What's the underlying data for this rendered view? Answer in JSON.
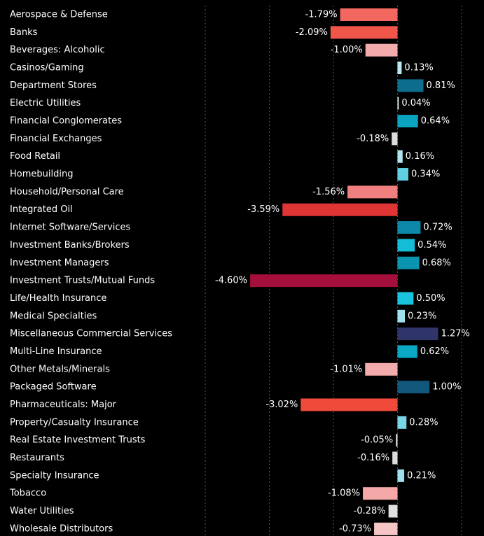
{
  "chart_data": {
    "type": "bar",
    "orientation": "horizontal",
    "categories": [
      "Aerospace & Defense",
      "Banks",
      "Beverages: Alcoholic",
      "Casinos/Gaming",
      "Department Stores",
      "Electric Utilities",
      "Financial Conglomerates",
      "Financial Exchanges",
      "Food Retail",
      "Homebuilding",
      "Household/Personal Care",
      "Integrated Oil",
      "Internet Software/Services",
      "Investment Banks/Brokers",
      "Investment Managers",
      "Investment Trusts/Mutual Funds",
      "Life/Health Insurance",
      "Medical Specialties",
      "Miscellaneous Commercial Services",
      "Multi-Line Insurance",
      "Other Metals/Minerals",
      "Packaged Software",
      "Pharmaceuticals: Major",
      "Property/Casualty Insurance",
      "Real Estate Investment Trusts",
      "Restaurants",
      "Specialty Insurance",
      "Tobacco",
      "Water Utilities",
      "Wholesale Distributors"
    ],
    "values": [
      -1.79,
      -2.09,
      -1.0,
      0.13,
      0.81,
      0.04,
      0.64,
      -0.18,
      0.16,
      0.34,
      -1.56,
      -3.59,
      0.72,
      0.54,
      0.68,
      -4.6,
      0.5,
      0.23,
      1.27,
      0.62,
      -1.01,
      1.0,
      -3.02,
      0.28,
      -0.05,
      -0.16,
      0.21,
      -1.08,
      -0.28,
      -0.73
    ],
    "value_labels": [
      "-1.79%",
      "-2.09%",
      "-1.00%",
      "0.13%",
      "0.81%",
      "0.04%",
      "0.64%",
      "-0.18%",
      "0.16%",
      "0.34%",
      "-1.56%",
      "-3.59%",
      "0.72%",
      "0.54%",
      "0.68%",
      "-4.60%",
      "0.50%",
      "0.23%",
      "1.27%",
      "0.62%",
      "-1.01%",
      "1.00%",
      "-3.02%",
      "0.28%",
      "-0.05%",
      "-0.16%",
      "0.21%",
      "-1.08%",
      "-0.28%",
      "-0.73%"
    ],
    "colors": [
      "#f2685f",
      "#f0564a",
      "#f4abab",
      "#b8e8f0",
      "#0c6e8c",
      "#e0f0f4",
      "#0aa4c0",
      "#dcdcdc",
      "#b0e4ee",
      "#60d0e4",
      "#f08080",
      "#e03535",
      "#0d88a8",
      "#14bcd6",
      "#0b94b0",
      "#a50f3c",
      "#19c3dc",
      "#9ee0ec",
      "#2f3568",
      "#0aa8c4",
      "#f4abab",
      "#12587c",
      "#f04a3a",
      "#7ad6e6",
      "#d8d8d8",
      "#dcdcdc",
      "#9ee0ec",
      "#f4a8a8",
      "#e0e0e0",
      "#f6c6c6"
    ],
    "xlim": [
      -6,
      2.7
    ],
    "xticks": [
      -6,
      -4,
      -2,
      0,
      2
    ],
    "grid": true
  }
}
